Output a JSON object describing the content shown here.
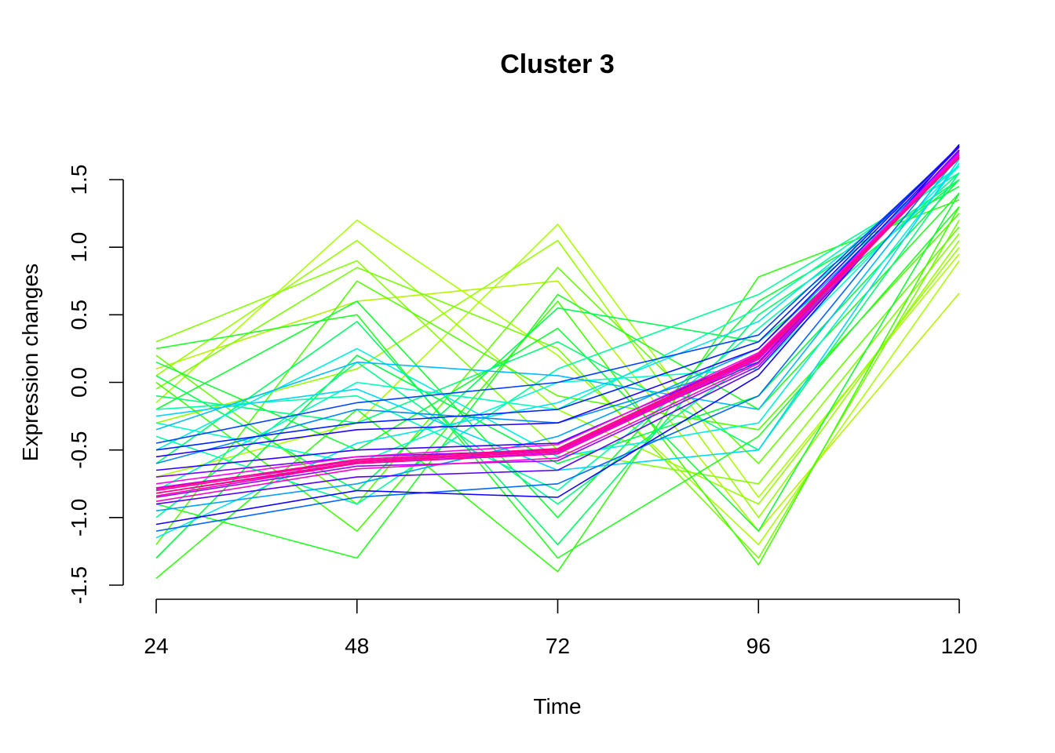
{
  "chart_data": {
    "type": "line",
    "title": "Cluster 3",
    "xlabel": "Time",
    "ylabel": "Expression changes",
    "x": [
      24,
      48,
      72,
      96,
      120
    ],
    "xticks": [
      "24",
      "48",
      "72",
      "96",
      "120"
    ],
    "yticks": [
      "-1.5",
      "-1.0",
      "-0.5",
      "0.0",
      "0.5",
      "1.0",
      "1.5"
    ],
    "ytick_values": [
      -1.5,
      -1.0,
      -0.5,
      0.0,
      0.5,
      1.0,
      1.5
    ],
    "xlim": [
      24,
      120
    ],
    "ylim": [
      -1.5,
      1.5
    ],
    "grid": false,
    "legend": "none",
    "coloring": "rainbow by membership (yellow-green = low, green, cyan, blue, magenta/pink = high)",
    "colors": {
      "low": "#aaff00",
      "green": "#22ff22",
      "cyan": "#00e5e5",
      "blue": "#0022ff",
      "high": "#ff0080"
    },
    "series": [
      {
        "membership": 0.05,
        "color": "#b4f500",
        "values": [
          0.1,
          0.6,
          0.75,
          -1.1,
          0.66
        ]
      },
      {
        "membership": 0.06,
        "color": "#aaff00",
        "values": [
          -0.15,
          1.2,
          0.2,
          -1.2,
          0.9
        ]
      },
      {
        "membership": 0.07,
        "color": "#aaff00",
        "values": [
          -0.7,
          -0.3,
          1.17,
          -0.85,
          0.95
        ]
      },
      {
        "membership": 0.08,
        "color": "#99ff00",
        "values": [
          0.05,
          1.05,
          -0.2,
          -0.9,
          1.0
        ]
      },
      {
        "membership": 0.09,
        "color": "#99ff00",
        "values": [
          -0.3,
          0.1,
          1.05,
          -1.0,
          1.05
        ]
      },
      {
        "membership": 0.1,
        "color": "#88ff00",
        "values": [
          0.3,
          0.9,
          -0.5,
          -0.75,
          1.1
        ]
      },
      {
        "membership": 0.11,
        "color": "#77ff00",
        "values": [
          -0.05,
          0.85,
          0.25,
          -1.3,
          1.2
        ]
      },
      {
        "membership": 0.12,
        "color": "#66ff00",
        "values": [
          0.2,
          -0.9,
          0.85,
          -0.6,
          1.15
        ]
      },
      {
        "membership": 0.13,
        "color": "#55ff00",
        "values": [
          -1.2,
          0.75,
          -0.1,
          -0.35,
          1.25
        ]
      },
      {
        "membership": 0.14,
        "color": "#44ff00",
        "values": [
          0.0,
          -1.1,
          0.6,
          -1.35,
          1.3
        ]
      },
      {
        "membership": 0.15,
        "color": "#33ff11",
        "values": [
          -1.45,
          -0.2,
          -1.4,
          0.78,
          1.35
        ]
      },
      {
        "membership": 0.16,
        "color": "#22ff22",
        "values": [
          0.25,
          0.5,
          -1.3,
          -0.4,
          1.3
        ]
      },
      {
        "membership": 0.17,
        "color": "#22ff22",
        "values": [
          -0.9,
          -1.3,
          0.65,
          -0.2,
          1.4
        ]
      },
      {
        "membership": 0.18,
        "color": "#11ff33",
        "values": [
          0.15,
          -0.5,
          0.4,
          -1.1,
          1.4
        ]
      },
      {
        "membership": 0.19,
        "color": "#11ff33",
        "values": [
          -0.2,
          0.6,
          -1.0,
          0.6,
          1.45
        ]
      },
      {
        "membership": 0.2,
        "color": "#00ff44",
        "values": [
          -1.3,
          0.2,
          -0.6,
          -0.1,
          1.5
        ]
      },
      {
        "membership": 0.21,
        "color": "#00ff55",
        "values": [
          0.05,
          -0.8,
          0.55,
          0.3,
          1.5
        ]
      },
      {
        "membership": 0.22,
        "color": "#00ff66",
        "values": [
          -0.6,
          0.45,
          -1.2,
          0.5,
          1.5
        ]
      },
      {
        "membership": 0.23,
        "color": "#00ff77",
        "values": [
          -0.1,
          -0.3,
          0.3,
          -0.5,
          1.55
        ]
      },
      {
        "membership": 0.24,
        "color": "#00ff88",
        "values": [
          -1.0,
          0.15,
          -0.9,
          0.2,
          1.55
        ]
      },
      {
        "membership": 0.26,
        "color": "#00ff99",
        "values": [
          -0.4,
          -0.9,
          0.1,
          0.65,
          1.55
        ]
      },
      {
        "membership": 0.28,
        "color": "#00ffaa",
        "values": [
          -0.2,
          -0.1,
          -0.8,
          0.4,
          1.6
        ]
      },
      {
        "membership": 0.3,
        "color": "#00ffbb",
        "values": [
          -0.8,
          0.0,
          -0.2,
          0.55,
          1.6
        ]
      },
      {
        "membership": 0.32,
        "color": "#00ffcc",
        "values": [
          -0.3,
          -0.6,
          0.0,
          0.1,
          1.6
        ]
      },
      {
        "membership": 0.34,
        "color": "#00f0dd",
        "values": [
          -0.5,
          0.25,
          -0.55,
          -0.3,
          1.62
        ]
      },
      {
        "membership": 0.36,
        "color": "#00e5ee",
        "values": [
          -1.15,
          -0.45,
          -0.15,
          0.45,
          1.65
        ]
      },
      {
        "membership": 0.38,
        "color": "#00d5ff",
        "values": [
          -0.25,
          -0.05,
          -0.65,
          -0.5,
          1.65
        ]
      },
      {
        "membership": 0.4,
        "color": "#00bbff",
        "values": [
          -0.35,
          0.15,
          0.05,
          -0.2,
          1.68
        ]
      },
      {
        "membership": 0.42,
        "color": "#00a0ff",
        "values": [
          -0.95,
          -0.75,
          -0.4,
          0.25,
          1.7
        ]
      },
      {
        "membership": 0.45,
        "color": "#0088ff",
        "values": [
          -0.6,
          -0.2,
          -0.3,
          0.15,
          1.7
        ]
      },
      {
        "membership": 0.48,
        "color": "#0066ff",
        "values": [
          -1.1,
          -0.85,
          -0.75,
          -0.1,
          1.72
        ]
      },
      {
        "membership": 0.51,
        "color": "#0044ff",
        "values": [
          -0.45,
          -0.15,
          0.0,
          0.35,
          1.74
        ]
      },
      {
        "membership": 0.54,
        "color": "#0022ff",
        "values": [
          -0.5,
          -0.3,
          -0.2,
          0.3,
          1.75
        ]
      },
      {
        "membership": 0.57,
        "color": "#1100ff",
        "values": [
          -1.05,
          -0.8,
          -0.85,
          0.05,
          1.76
        ]
      },
      {
        "membership": 0.6,
        "color": "#2200ff",
        "values": [
          -0.55,
          -0.35,
          -0.3,
          0.25,
          1.75
        ]
      },
      {
        "membership": 0.63,
        "color": "#3300ff",
        "values": [
          -0.65,
          -0.5,
          -0.45,
          0.2,
          1.74
        ]
      },
      {
        "membership": 0.66,
        "color": "#5500ff",
        "values": [
          -0.9,
          -0.7,
          -0.65,
          0.1,
          1.72
        ]
      },
      {
        "membership": 0.69,
        "color": "#7700ff",
        "values": [
          -0.7,
          -0.55,
          -0.5,
          0.15,
          1.72
        ]
      },
      {
        "membership": 0.72,
        "color": "#9900ff",
        "values": [
          -0.85,
          -0.62,
          -0.58,
          0.12,
          1.71
        ]
      },
      {
        "membership": 0.75,
        "color": "#bb00ff",
        "values": [
          -0.78,
          -0.58,
          -0.5,
          0.2,
          1.7
        ]
      },
      {
        "membership": 0.78,
        "color": "#dd00ff",
        "values": [
          -0.82,
          -0.6,
          -0.52,
          0.18,
          1.7
        ]
      },
      {
        "membership": 0.81,
        "color": "#ff00ee",
        "values": [
          -0.75,
          -0.55,
          -0.46,
          0.22,
          1.69
        ]
      },
      {
        "membership": 0.84,
        "color": "#ff00cc",
        "values": [
          -0.88,
          -0.64,
          -0.56,
          0.14,
          1.68
        ]
      },
      {
        "membership": 0.87,
        "color": "#ff00aa",
        "values": [
          -0.8,
          -0.58,
          -0.5,
          0.2,
          1.68
        ]
      },
      {
        "membership": 0.9,
        "color": "#ff0099",
        "values": [
          -0.84,
          -0.6,
          -0.53,
          0.17,
          1.67
        ]
      },
      {
        "membership": 0.93,
        "color": "#ff0088",
        "values": [
          -0.79,
          -0.57,
          -0.49,
          0.21,
          1.66
        ]
      },
      {
        "membership": 0.96,
        "color": "#ff0080",
        "values": [
          -0.82,
          -0.59,
          -0.51,
          0.19,
          1.66
        ]
      }
    ]
  }
}
